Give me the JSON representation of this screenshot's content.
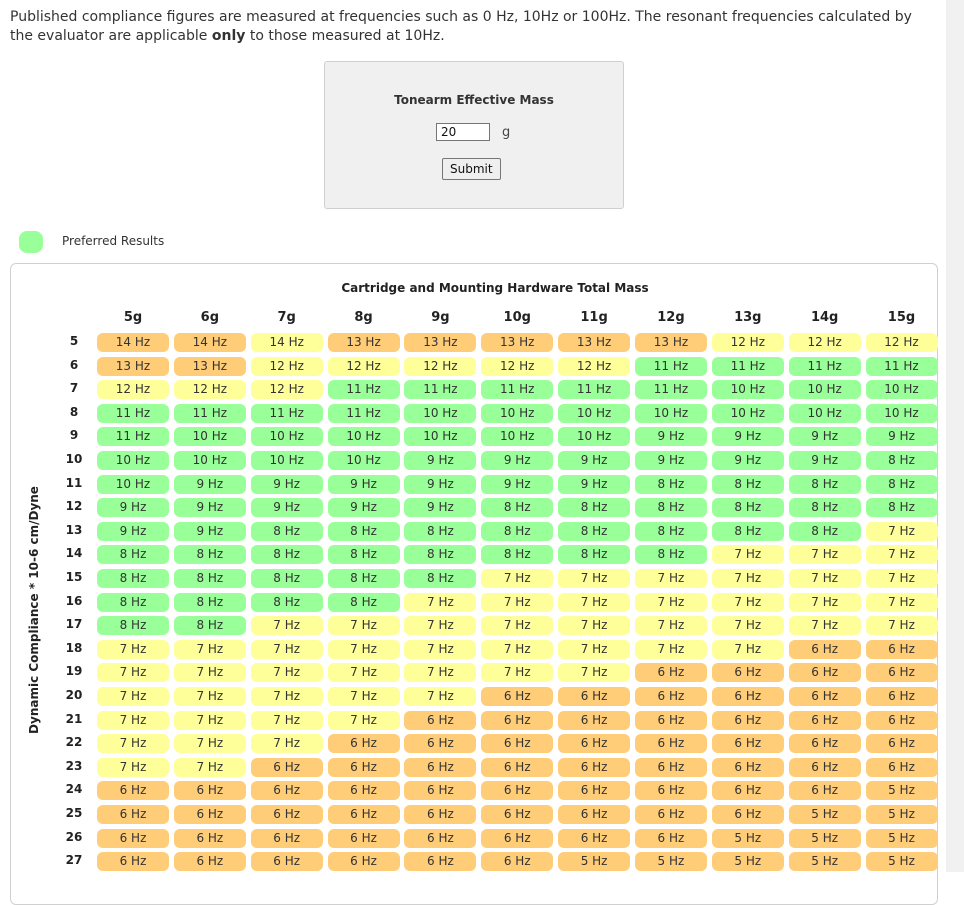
{
  "intro": {
    "text_before": "Published compliance figures are measured at frequencies such as 0 Hz, 10Hz or 100Hz. The resonant frequencies calculated by the evaluator are applicable ",
    "emphasis": "only",
    "text_after": " to those measured at 10Hz."
  },
  "tonearm": {
    "title": "Tonearm Effective Mass",
    "input_value": "20",
    "unit": "g",
    "submit_label": "Submit"
  },
  "legend": {
    "label": "Preferred Results",
    "color": "#99ff99"
  },
  "colors": {
    "orange": "#ffcc77",
    "yellow": "#ffff99",
    "green": "#99ff99"
  },
  "table": {
    "title": "Cartridge and Mounting Hardware Total Mass",
    "y_title": "Dynamic Compliance * 10-6 cm/Dyne",
    "columns": [
      "5g",
      "6g",
      "7g",
      "8g",
      "9g",
      "10g",
      "11g",
      "12g",
      "13g",
      "14g",
      "15g"
    ],
    "rows": [
      {
        "label": "5",
        "cells": [
          [
            "14 Hz",
            "o"
          ],
          [
            "14 Hz",
            "o"
          ],
          [
            "14 Hz",
            "y"
          ],
          [
            "13 Hz",
            "o"
          ],
          [
            "13 Hz",
            "o"
          ],
          [
            "13 Hz",
            "o"
          ],
          [
            "13 Hz",
            "o"
          ],
          [
            "13 Hz",
            "o"
          ],
          [
            "12 Hz",
            "y"
          ],
          [
            "12 Hz",
            "y"
          ],
          [
            "12 Hz",
            "y"
          ]
        ]
      },
      {
        "label": "6",
        "cells": [
          [
            "13 Hz",
            "o"
          ],
          [
            "13 Hz",
            "o"
          ],
          [
            "12 Hz",
            "y"
          ],
          [
            "12 Hz",
            "y"
          ],
          [
            "12 Hz",
            "y"
          ],
          [
            "12 Hz",
            "y"
          ],
          [
            "12 Hz",
            "y"
          ],
          [
            "11 Hz",
            "g"
          ],
          [
            "11 Hz",
            "g"
          ],
          [
            "11 Hz",
            "g"
          ],
          [
            "11 Hz",
            "g"
          ]
        ]
      },
      {
        "label": "7",
        "cells": [
          [
            "12 Hz",
            "y"
          ],
          [
            "12 Hz",
            "y"
          ],
          [
            "12 Hz",
            "y"
          ],
          [
            "11 Hz",
            "g"
          ],
          [
            "11 Hz",
            "g"
          ],
          [
            "11 Hz",
            "g"
          ],
          [
            "11 Hz",
            "g"
          ],
          [
            "11 Hz",
            "g"
          ],
          [
            "10 Hz",
            "g"
          ],
          [
            "10 Hz",
            "g"
          ],
          [
            "10 Hz",
            "g"
          ]
        ]
      },
      {
        "label": "8",
        "cells": [
          [
            "11 Hz",
            "g"
          ],
          [
            "11 Hz",
            "g"
          ],
          [
            "11 Hz",
            "g"
          ],
          [
            "11 Hz",
            "g"
          ],
          [
            "10 Hz",
            "g"
          ],
          [
            "10 Hz",
            "g"
          ],
          [
            "10 Hz",
            "g"
          ],
          [
            "10 Hz",
            "g"
          ],
          [
            "10 Hz",
            "g"
          ],
          [
            "10 Hz",
            "g"
          ],
          [
            "10 Hz",
            "g"
          ]
        ]
      },
      {
        "label": "9",
        "cells": [
          [
            "11 Hz",
            "g"
          ],
          [
            "10 Hz",
            "g"
          ],
          [
            "10 Hz",
            "g"
          ],
          [
            "10 Hz",
            "g"
          ],
          [
            "10 Hz",
            "g"
          ],
          [
            "10 Hz",
            "g"
          ],
          [
            "10 Hz",
            "g"
          ],
          [
            "9 Hz",
            "g"
          ],
          [
            "9 Hz",
            "g"
          ],
          [
            "9 Hz",
            "g"
          ],
          [
            "9 Hz",
            "g"
          ]
        ]
      },
      {
        "label": "10",
        "cells": [
          [
            "10 Hz",
            "g"
          ],
          [
            "10 Hz",
            "g"
          ],
          [
            "10 Hz",
            "g"
          ],
          [
            "10 Hz",
            "g"
          ],
          [
            "9 Hz",
            "g"
          ],
          [
            "9 Hz",
            "g"
          ],
          [
            "9 Hz",
            "g"
          ],
          [
            "9 Hz",
            "g"
          ],
          [
            "9 Hz",
            "g"
          ],
          [
            "9 Hz",
            "g"
          ],
          [
            "8 Hz",
            "g"
          ]
        ]
      },
      {
        "label": "11",
        "cells": [
          [
            "10 Hz",
            "g"
          ],
          [
            "9 Hz",
            "g"
          ],
          [
            "9 Hz",
            "g"
          ],
          [
            "9 Hz",
            "g"
          ],
          [
            "9 Hz",
            "g"
          ],
          [
            "9 Hz",
            "g"
          ],
          [
            "9 Hz",
            "g"
          ],
          [
            "8 Hz",
            "g"
          ],
          [
            "8 Hz",
            "g"
          ],
          [
            "8 Hz",
            "g"
          ],
          [
            "8 Hz",
            "g"
          ]
        ]
      },
      {
        "label": "12",
        "cells": [
          [
            "9 Hz",
            "g"
          ],
          [
            "9 Hz",
            "g"
          ],
          [
            "9 Hz",
            "g"
          ],
          [
            "9 Hz",
            "g"
          ],
          [
            "9 Hz",
            "g"
          ],
          [
            "8 Hz",
            "g"
          ],
          [
            "8 Hz",
            "g"
          ],
          [
            "8 Hz",
            "g"
          ],
          [
            "8 Hz",
            "g"
          ],
          [
            "8 Hz",
            "g"
          ],
          [
            "8 Hz",
            "g"
          ]
        ]
      },
      {
        "label": "13",
        "cells": [
          [
            "9 Hz",
            "g"
          ],
          [
            "9 Hz",
            "g"
          ],
          [
            "8 Hz",
            "g"
          ],
          [
            "8 Hz",
            "g"
          ],
          [
            "8 Hz",
            "g"
          ],
          [
            "8 Hz",
            "g"
          ],
          [
            "8 Hz",
            "g"
          ],
          [
            "8 Hz",
            "g"
          ],
          [
            "8 Hz",
            "g"
          ],
          [
            "8 Hz",
            "g"
          ],
          [
            "7 Hz",
            "y"
          ]
        ]
      },
      {
        "label": "14",
        "cells": [
          [
            "8 Hz",
            "g"
          ],
          [
            "8 Hz",
            "g"
          ],
          [
            "8 Hz",
            "g"
          ],
          [
            "8 Hz",
            "g"
          ],
          [
            "8 Hz",
            "g"
          ],
          [
            "8 Hz",
            "g"
          ],
          [
            "8 Hz",
            "g"
          ],
          [
            "8 Hz",
            "g"
          ],
          [
            "7 Hz",
            "y"
          ],
          [
            "7 Hz",
            "y"
          ],
          [
            "7 Hz",
            "y"
          ]
        ]
      },
      {
        "label": "15",
        "cells": [
          [
            "8 Hz",
            "g"
          ],
          [
            "8 Hz",
            "g"
          ],
          [
            "8 Hz",
            "g"
          ],
          [
            "8 Hz",
            "g"
          ],
          [
            "8 Hz",
            "g"
          ],
          [
            "7 Hz",
            "y"
          ],
          [
            "7 Hz",
            "y"
          ],
          [
            "7 Hz",
            "y"
          ],
          [
            "7 Hz",
            "y"
          ],
          [
            "7 Hz",
            "y"
          ],
          [
            "7 Hz",
            "y"
          ]
        ]
      },
      {
        "label": "16",
        "cells": [
          [
            "8 Hz",
            "g"
          ],
          [
            "8 Hz",
            "g"
          ],
          [
            "8 Hz",
            "g"
          ],
          [
            "8 Hz",
            "g"
          ],
          [
            "7 Hz",
            "y"
          ],
          [
            "7 Hz",
            "y"
          ],
          [
            "7 Hz",
            "y"
          ],
          [
            "7 Hz",
            "y"
          ],
          [
            "7 Hz",
            "y"
          ],
          [
            "7 Hz",
            "y"
          ],
          [
            "7 Hz",
            "y"
          ]
        ]
      },
      {
        "label": "17",
        "cells": [
          [
            "8 Hz",
            "g"
          ],
          [
            "8 Hz",
            "g"
          ],
          [
            "7 Hz",
            "y"
          ],
          [
            "7 Hz",
            "y"
          ],
          [
            "7 Hz",
            "y"
          ],
          [
            "7 Hz",
            "y"
          ],
          [
            "7 Hz",
            "y"
          ],
          [
            "7 Hz",
            "y"
          ],
          [
            "7 Hz",
            "y"
          ],
          [
            "7 Hz",
            "y"
          ],
          [
            "7 Hz",
            "y"
          ]
        ]
      },
      {
        "label": "18",
        "cells": [
          [
            "7 Hz",
            "y"
          ],
          [
            "7 Hz",
            "y"
          ],
          [
            "7 Hz",
            "y"
          ],
          [
            "7 Hz",
            "y"
          ],
          [
            "7 Hz",
            "y"
          ],
          [
            "7 Hz",
            "y"
          ],
          [
            "7 Hz",
            "y"
          ],
          [
            "7 Hz",
            "y"
          ],
          [
            "7 Hz",
            "y"
          ],
          [
            "6 Hz",
            "o"
          ],
          [
            "6 Hz",
            "o"
          ]
        ]
      },
      {
        "label": "19",
        "cells": [
          [
            "7 Hz",
            "y"
          ],
          [
            "7 Hz",
            "y"
          ],
          [
            "7 Hz",
            "y"
          ],
          [
            "7 Hz",
            "y"
          ],
          [
            "7 Hz",
            "y"
          ],
          [
            "7 Hz",
            "y"
          ],
          [
            "7 Hz",
            "y"
          ],
          [
            "6 Hz",
            "o"
          ],
          [
            "6 Hz",
            "o"
          ],
          [
            "6 Hz",
            "o"
          ],
          [
            "6 Hz",
            "o"
          ]
        ]
      },
      {
        "label": "20",
        "cells": [
          [
            "7 Hz",
            "y"
          ],
          [
            "7 Hz",
            "y"
          ],
          [
            "7 Hz",
            "y"
          ],
          [
            "7 Hz",
            "y"
          ],
          [
            "7 Hz",
            "y"
          ],
          [
            "6 Hz",
            "o"
          ],
          [
            "6 Hz",
            "o"
          ],
          [
            "6 Hz",
            "o"
          ],
          [
            "6 Hz",
            "o"
          ],
          [
            "6 Hz",
            "o"
          ],
          [
            "6 Hz",
            "o"
          ]
        ]
      },
      {
        "label": "21",
        "cells": [
          [
            "7 Hz",
            "y"
          ],
          [
            "7 Hz",
            "y"
          ],
          [
            "7 Hz",
            "y"
          ],
          [
            "7 Hz",
            "y"
          ],
          [
            "6 Hz",
            "o"
          ],
          [
            "6 Hz",
            "o"
          ],
          [
            "6 Hz",
            "o"
          ],
          [
            "6 Hz",
            "o"
          ],
          [
            "6 Hz",
            "o"
          ],
          [
            "6 Hz",
            "o"
          ],
          [
            "6 Hz",
            "o"
          ]
        ]
      },
      {
        "label": "22",
        "cells": [
          [
            "7 Hz",
            "y"
          ],
          [
            "7 Hz",
            "y"
          ],
          [
            "7 Hz",
            "y"
          ],
          [
            "6 Hz",
            "o"
          ],
          [
            "6 Hz",
            "o"
          ],
          [
            "6 Hz",
            "o"
          ],
          [
            "6 Hz",
            "o"
          ],
          [
            "6 Hz",
            "o"
          ],
          [
            "6 Hz",
            "o"
          ],
          [
            "6 Hz",
            "o"
          ],
          [
            "6 Hz",
            "o"
          ]
        ]
      },
      {
        "label": "23",
        "cells": [
          [
            "7 Hz",
            "y"
          ],
          [
            "7 Hz",
            "y"
          ],
          [
            "6 Hz",
            "o"
          ],
          [
            "6 Hz",
            "o"
          ],
          [
            "6 Hz",
            "o"
          ],
          [
            "6 Hz",
            "o"
          ],
          [
            "6 Hz",
            "o"
          ],
          [
            "6 Hz",
            "o"
          ],
          [
            "6 Hz",
            "o"
          ],
          [
            "6 Hz",
            "o"
          ],
          [
            "6 Hz",
            "o"
          ]
        ]
      },
      {
        "label": "24",
        "cells": [
          [
            "6 Hz",
            "o"
          ],
          [
            "6 Hz",
            "o"
          ],
          [
            "6 Hz",
            "o"
          ],
          [
            "6 Hz",
            "o"
          ],
          [
            "6 Hz",
            "o"
          ],
          [
            "6 Hz",
            "o"
          ],
          [
            "6 Hz",
            "o"
          ],
          [
            "6 Hz",
            "o"
          ],
          [
            "6 Hz",
            "o"
          ],
          [
            "6 Hz",
            "o"
          ],
          [
            "5 Hz",
            "o"
          ]
        ]
      },
      {
        "label": "25",
        "cells": [
          [
            "6 Hz",
            "o"
          ],
          [
            "6 Hz",
            "o"
          ],
          [
            "6 Hz",
            "o"
          ],
          [
            "6 Hz",
            "o"
          ],
          [
            "6 Hz",
            "o"
          ],
          [
            "6 Hz",
            "o"
          ],
          [
            "6 Hz",
            "o"
          ],
          [
            "6 Hz",
            "o"
          ],
          [
            "6 Hz",
            "o"
          ],
          [
            "5 Hz",
            "o"
          ],
          [
            "5 Hz",
            "o"
          ]
        ]
      },
      {
        "label": "26",
        "cells": [
          [
            "6 Hz",
            "o"
          ],
          [
            "6 Hz",
            "o"
          ],
          [
            "6 Hz",
            "o"
          ],
          [
            "6 Hz",
            "o"
          ],
          [
            "6 Hz",
            "o"
          ],
          [
            "6 Hz",
            "o"
          ],
          [
            "6 Hz",
            "o"
          ],
          [
            "6 Hz",
            "o"
          ],
          [
            "5 Hz",
            "o"
          ],
          [
            "5 Hz",
            "o"
          ],
          [
            "5 Hz",
            "o"
          ]
        ]
      },
      {
        "label": "27",
        "cells": [
          [
            "6 Hz",
            "o"
          ],
          [
            "6 Hz",
            "o"
          ],
          [
            "6 Hz",
            "o"
          ],
          [
            "6 Hz",
            "o"
          ],
          [
            "6 Hz",
            "o"
          ],
          [
            "6 Hz",
            "o"
          ],
          [
            "5 Hz",
            "o"
          ],
          [
            "5 Hz",
            "o"
          ],
          [
            "5 Hz",
            "o"
          ],
          [
            "5 Hz",
            "o"
          ],
          [
            "5 Hz",
            "o"
          ]
        ]
      }
    ]
  }
}
